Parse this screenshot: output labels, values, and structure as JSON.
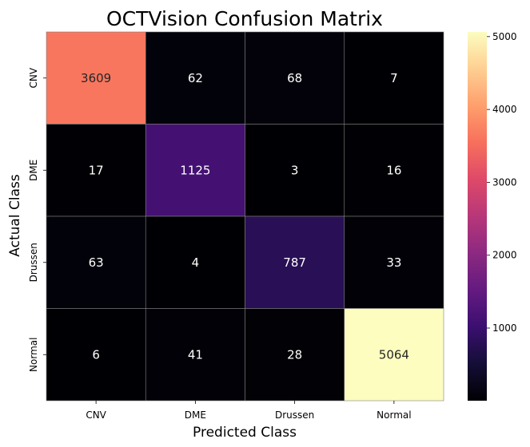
{
  "chart_data": {
    "type": "heatmap",
    "title": "OCTVision Confusion Matrix",
    "xlabel": "Predicted Class",
    "ylabel": "Actual Class",
    "x_categories": [
      "CNV",
      "DME",
      "Drussen",
      "Normal"
    ],
    "y_categories": [
      "CNV",
      "DME",
      "Drussen",
      "Normal"
    ],
    "values": [
      [
        3609,
        62,
        68,
        7
      ],
      [
        17,
        1125,
        3,
        16
      ],
      [
        63,
        4,
        787,
        33
      ],
      [
        6,
        41,
        28,
        5064
      ]
    ],
    "colormap": "magma",
    "colorbar_range": [
      3,
      5064
    ],
    "colorbar_ticks": [
      1000,
      2000,
      3000,
      4000,
      5000
    ],
    "grid_line_color": "#808080"
  }
}
